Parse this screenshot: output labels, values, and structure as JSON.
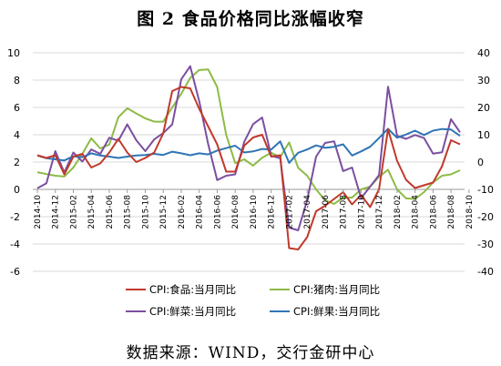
{
  "title": "图 2  食品价格同比涨幅收窄",
  "source": "数据来源：WIND，交行金研中心",
  "chart_data": {
    "type": "line",
    "left_axis": {
      "ticks": [
        10,
        8,
        6,
        4,
        2,
        0,
        -2,
        -4,
        -6
      ],
      "min": -6,
      "max": 10
    },
    "right_axis": {
      "ticks": [
        40,
        30,
        20,
        10,
        0,
        -10,
        -20,
        -30,
        -40
      ],
      "min": -40,
      "max": 40
    },
    "x_tick_labels": [
      "2014-10",
      "2014-12",
      "2015-02",
      "2015-04",
      "2015-06",
      "2015-08",
      "2015-10",
      "2015-12",
      "2016-02",
      "2016-04",
      "2016-06",
      "2016-08",
      "2016-10",
      "2016-12",
      "2017-02",
      "2017-04",
      "2017-06",
      "2017-08",
      "2017-10",
      "2017-12",
      "2018-02",
      "2018-04",
      "2018-06",
      "2018-08",
      "2018-10"
    ],
    "series": [
      {
        "name": "CPI:食品:当月同比",
        "color": "#c0392b",
        "axis": "left",
        "values": [
          2.5,
          2.3,
          2.5,
          1.1,
          2.4,
          2.6,
          1.6,
          1.9,
          2.7,
          3.7,
          2.7,
          2.0,
          2.3,
          2.7,
          4.1,
          7.2,
          7.5,
          7.4,
          5.9,
          4.6,
          3.3,
          1.3,
          1.3,
          3.2,
          3.8,
          4.0,
          2.4,
          2.5,
          -4.3,
          -4.4,
          -3.5,
          -1.6,
          -1.2,
          -0.7,
          -0.2,
          -1.1,
          -0.4,
          -1.3,
          0.0,
          4.4,
          2.1,
          0.7,
          0.1,
          0.3,
          0.5,
          1.7,
          3.6,
          3.3
        ]
      },
      {
        "name": "CPI:猪肉:当月同比",
        "color": "#8dbb45",
        "axis": "right",
        "values": [
          -3.7,
          -4.4,
          -5.0,
          -5.3,
          -2.0,
          3.0,
          8.7,
          5.0,
          6.4,
          16.4,
          19.7,
          17.8,
          16.0,
          14.8,
          14.8,
          20.0,
          25.0,
          30.8,
          33.7,
          33.9,
          27.5,
          10.0,
          -0.4,
          1.0,
          -1.3,
          1.6,
          3.4,
          1.8,
          7.2,
          -2.1,
          -5.0,
          -10.0,
          -14.0,
          -15.3,
          -13.0,
          -13.0,
          -10.0,
          -9.0,
          -5.4,
          -2.8,
          -10.0,
          -13.3,
          -13.5,
          -11.0,
          -7.5,
          -5.0,
          -4.5,
          -3.0
        ]
      },
      {
        "name": "CPI:鲜菜:当月同比",
        "color": "#7b4fa0",
        "axis": "right",
        "values": [
          -9.6,
          -7.8,
          4.0,
          -3.8,
          3.5,
          0.2,
          4.6,
          3.0,
          8.9,
          7.8,
          13.8,
          8.0,
          4.0,
          8.3,
          10.6,
          13.8,
          30.3,
          35.1,
          22.3,
          6.5,
          -6.6,
          -5.0,
          -4.5,
          7.4,
          13.9,
          16.3,
          2.3,
          1.4,
          -24.0,
          -25.0,
          -14.0,
          2.0,
          7.0,
          7.6,
          -3.3,
          -2.0,
          -13.2,
          -9.0,
          -4.8,
          27.6,
          9.6,
          8.5,
          9.9,
          8.8,
          3.1,
          3.6,
          15.7,
          10.9
        ]
      },
      {
        "name": "CPI:鲜果:当月同比",
        "color": "#2f75b5",
        "axis": "right",
        "values": [
          2.4,
          1.4,
          1.0,
          0.6,
          2.1,
          1.8,
          3.2,
          2.4,
          2.0,
          1.5,
          2.0,
          2.4,
          2.6,
          3.0,
          2.6,
          3.8,
          3.2,
          2.5,
          3.2,
          2.8,
          4.2,
          5.1,
          6.0,
          3.5,
          3.9,
          4.8,
          4.6,
          7.6,
          -0.3,
          3.4,
          4.6,
          6.1,
          5.2,
          5.6,
          6.5,
          2.4,
          3.9,
          5.6,
          8.8,
          12.2,
          8.9,
          10.1,
          11.5,
          9.9,
          11.5,
          12.1,
          11.9,
          9.6
        ]
      }
    ]
  }
}
